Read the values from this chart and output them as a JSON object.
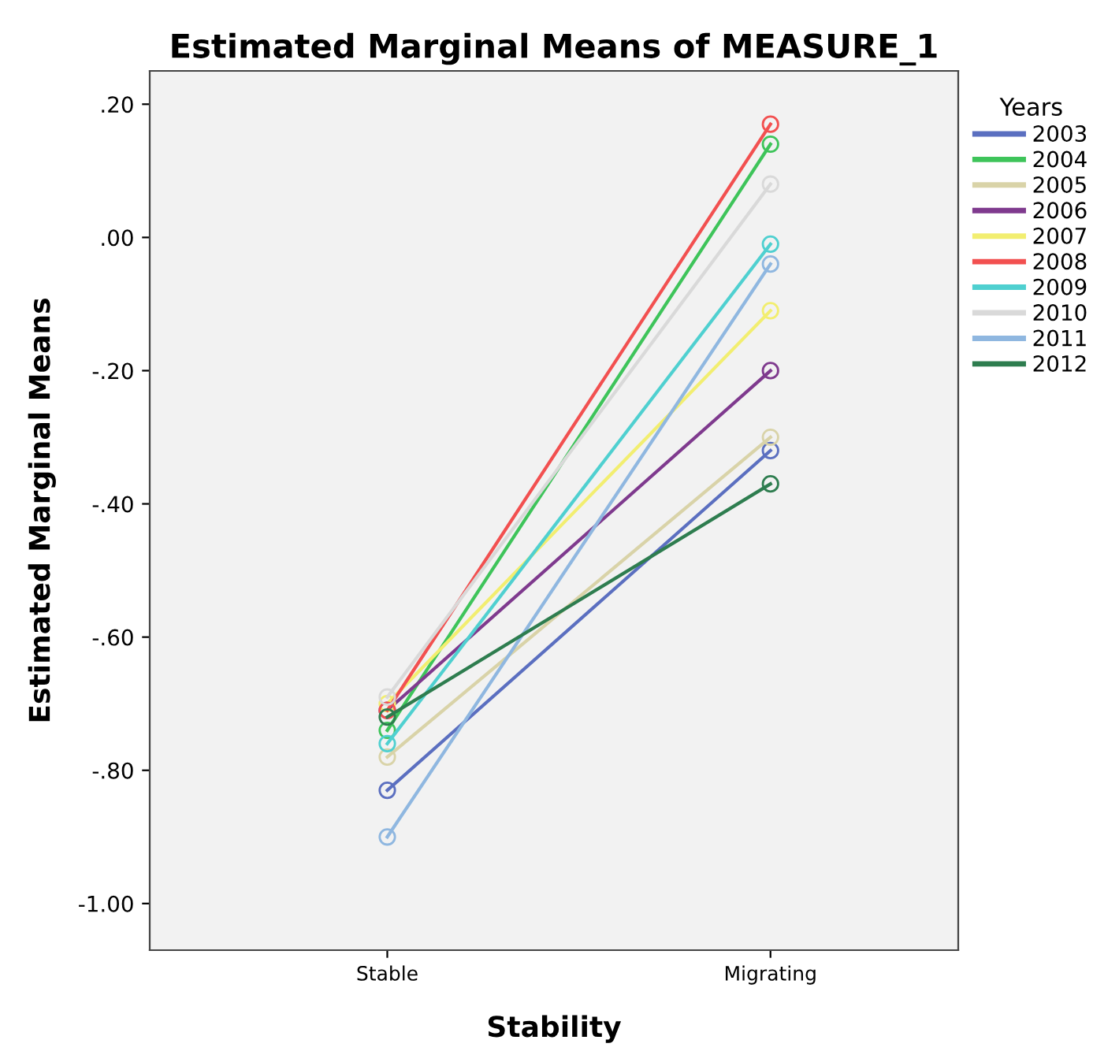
{
  "chart_data": {
    "type": "line",
    "title": "Estimated Marginal Means of MEASURE_1",
    "xlabel": "Stability",
    "ylabel": "Estimated Marginal Means",
    "legend_title": "Years",
    "categories": [
      "Stable",
      "Migrating"
    ],
    "series": [
      {
        "name": "2003",
        "color": "#5b6fc0",
        "values": [
          -0.83,
          -0.32
        ]
      },
      {
        "name": "2004",
        "color": "#3ec45a",
        "values": [
          -0.74,
          0.14
        ]
      },
      {
        "name": "2005",
        "color": "#d9d3a8",
        "values": [
          -0.78,
          -0.3
        ]
      },
      {
        "name": "2006",
        "color": "#7f3a8e",
        "values": [
          -0.71,
          -0.2
        ]
      },
      {
        "name": "2007",
        "color": "#f2ee70",
        "values": [
          -0.7,
          -0.11
        ]
      },
      {
        "name": "2008",
        "color": "#f25050",
        "values": [
          -0.71,
          0.17
        ]
      },
      {
        "name": "2009",
        "color": "#4fd0d0",
        "values": [
          -0.76,
          -0.01
        ]
      },
      {
        "name": "2010",
        "color": "#d9d9d9",
        "values": [
          -0.69,
          0.08
        ]
      },
      {
        "name": "2011",
        "color": "#8fb7e0",
        "values": [
          -0.9,
          -0.04
        ]
      },
      {
        "name": "2012",
        "color": "#2e7d4f",
        "values": [
          -0.72,
          -0.37
        ]
      }
    ],
    "ylim": [
      -1.07,
      0.25
    ],
    "yticks": [
      {
        "value": -1.0,
        "label": "-1.00"
      },
      {
        "value": -0.8,
        "label": "-.80"
      },
      {
        "value": -0.6,
        "label": "-.60"
      },
      {
        "value": -0.4,
        "label": "-.40"
      },
      {
        "value": -0.2,
        "label": "-.20"
      },
      {
        "value": 0,
        "label": ".00"
      },
      {
        "value": 0.2,
        "label": ".20"
      }
    ],
    "grid": false,
    "legend": "right",
    "marker": "circle",
    "line_style": "solid"
  }
}
